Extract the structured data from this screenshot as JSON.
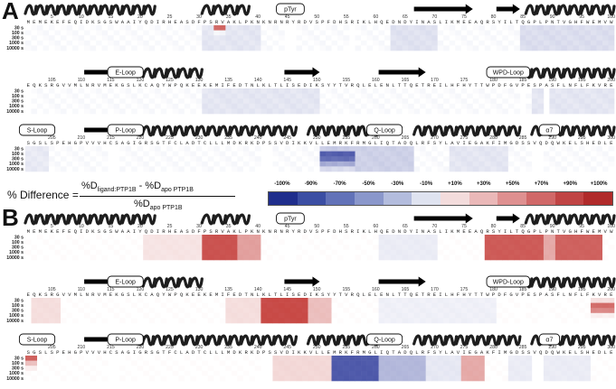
{
  "panels": [
    {
      "letter": "A",
      "state": "A"
    },
    {
      "letter": "B",
      "state": "B"
    }
  ],
  "time_labels": [
    "30 s",
    "100 s",
    "300 s",
    "1000 s",
    "10000 s"
  ],
  "rows": [
    {
      "start": 1,
      "sequence": "MEMEKEFEQIDKSGSWAAIYQDIRHEASDFPSRVAKLPKNKNRNRYRDVSPFDHSRIKLHQEDNDYINASLIKMEEAQRSYILTQGPLPNTVGHFWEMVW",
      "ticks": [
        "5",
        "10",
        "15",
        "20",
        "25",
        "30",
        "35",
        "40",
        "45",
        "50",
        "55",
        "60",
        "65",
        "70",
        "75",
        "80",
        "85",
        "90",
        "95",
        "100"
      ],
      "domains": [
        {
          "label": "pTyr",
          "at": 46
        }
      ]
    },
    {
      "start": 101,
      "sequence": "EQKSRGVVMLNRVMEKGSLKCAQYWPQKEEKEMIFEDTNLKLTLISEDIKSYYTVRQLELENLTTQETREILHFHYTTWPDFGVPESPASFLNFLFKVRE",
      "ticks": [
        "105",
        "110",
        "115",
        "120",
        "125",
        "130",
        "135",
        "140",
        "145",
        "150",
        "155",
        "160",
        "165",
        "170",
        "175",
        "180",
        "185",
        "190",
        "195",
        "200"
      ],
      "domains": [
        {
          "label": "E-Loop",
          "at": 118
        },
        {
          "label": "WPD-Loop",
          "at": 183
        }
      ]
    },
    {
      "start": 201,
      "sequence": "SGSLSPEHGPVVVHCSAGIGRSGTFCLADTCLLLMDKRKDPSSVDIKKVLLEMRKFRMGLIQTADQLRFSYLAVIEGAKFIMGDSSVQDQWKELSHEDLE",
      "ticks": [
        "205",
        "210",
        "215",
        "220",
        "225",
        "230",
        "235",
        "240",
        "245",
        "250",
        "255",
        "260",
        "265",
        "270",
        "275",
        "280",
        "285",
        "290",
        "295",
        "300"
      ],
      "domains": [
        {
          "label": "S-Loop",
          "at": 203
        },
        {
          "label": "P-Loop",
          "at": 218
        },
        {
          "label": "Q-Loop",
          "at": 262
        },
        {
          "label": "α7",
          "at": 290
        }
      ]
    }
  ],
  "equation": {
    "lhs": "% Difference =",
    "numerator_a": "%D",
    "numerator_a_sub": "ligand:PTP1B",
    "minus": " - ",
    "numerator_b": "%D",
    "numerator_b_sub": "apo PTP1B",
    "denominator": "%D",
    "denominator_sub": "apo PTP1B"
  },
  "legend": {
    "labels": [
      "-100%",
      "-90%",
      "-70%",
      "-50%",
      "-30%",
      "-10%",
      "+10%",
      "+30%",
      "+50%",
      "+70%",
      "+90%",
      "+100%"
    ],
    "colors": [
      "#1f2e8c",
      "#3b4ea3",
      "#6272b8",
      "#8a97cb",
      "#b3bcdd",
      "#dfe3f0",
      "#f3dcdc",
      "#eab8b8",
      "#de9090",
      "#d06868",
      "#c04444",
      "#b02a2a"
    ]
  },
  "colors": {
    "helix": "#1e1e1e",
    "strand": "#000000",
    "neg_strong": "#2a3a96",
    "pos_strong": "#c0332f"
  }
}
